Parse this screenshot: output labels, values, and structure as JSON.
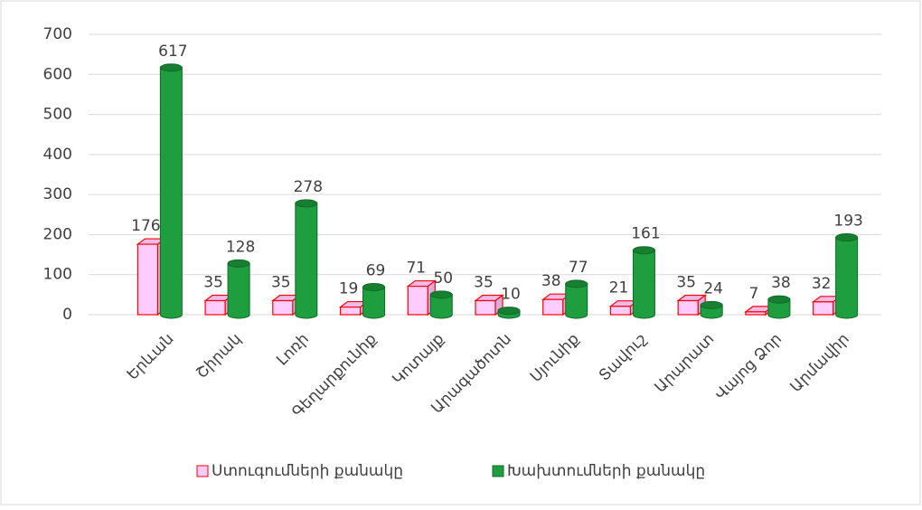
{
  "chart_data": {
    "type": "bar",
    "categories": [
      "Երևան",
      "Շիրակ",
      "Լոռի",
      "Գեղարքունիք",
      "Կոտայք",
      "Արագածոտն",
      "Սյունիք",
      "Տավուշ",
      "Արարատ",
      "Վայոց Ձոր",
      "Արմավիր"
    ],
    "series": [
      {
        "name": "Ստուգումների քանակը",
        "color": "#ffccff",
        "values": [
          176,
          35,
          35,
          19,
          71,
          35,
          38,
          21,
          35,
          7,
          32
        ]
      },
      {
        "name": "Խախտումների քանակը",
        "color": "#1e9e3e",
        "values": [
          617,
          128,
          278,
          69,
          50,
          10,
          77,
          161,
          24,
          38,
          193
        ]
      }
    ],
    "ylim": [
      0,
      700
    ],
    "yticks": [
      0,
      100,
      200,
      300,
      400,
      500,
      600,
      700
    ],
    "grid": true,
    "legend": "bottom"
  }
}
